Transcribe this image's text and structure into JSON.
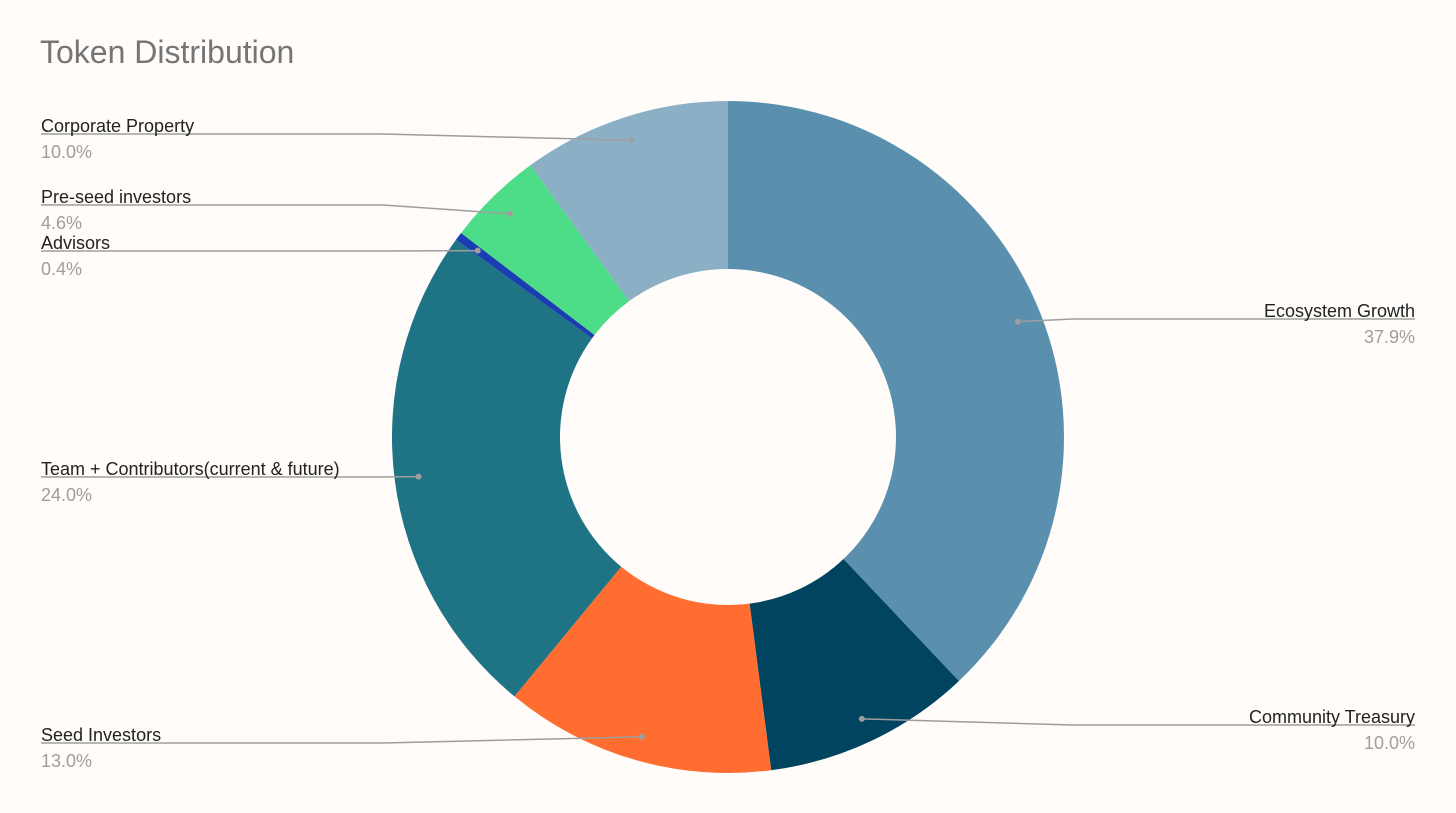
{
  "chart_data": {
    "type": "pie",
    "title": "Token Distribution",
    "hole": true,
    "legend": "labels on leader lines",
    "slices": [
      {
        "label": "Ecosystem Growth",
        "value": 37.9,
        "pct_text": "37.9%",
        "color": "#5a90ae",
        "side": "right"
      },
      {
        "label": "Community Treasury",
        "value": 10.0,
        "pct_text": "10.0%",
        "color": "#00445f",
        "side": "right"
      },
      {
        "label": "Seed Investors",
        "value": 13.0,
        "pct_text": "13.0%",
        "color": "#ff6d31",
        "side": "left"
      },
      {
        "label": "Team + Contributors(current & future)",
        "value": 24.0,
        "pct_text": "24.0%",
        "color": "#1e7385",
        "side": "left"
      },
      {
        "label": "Advisors",
        "value": 0.4,
        "pct_text": "0.4%",
        "color": "#1a3eb2",
        "side": "left"
      },
      {
        "label": "Pre-seed investors",
        "value": 4.6,
        "pct_text": "4.6%",
        "color": "#4ddd89",
        "side": "left"
      },
      {
        "label": "Corporate Property",
        "value": 10.0,
        "pct_text": "10.0%",
        "color": "#8bb0c6",
        "side": "left"
      }
    ]
  }
}
